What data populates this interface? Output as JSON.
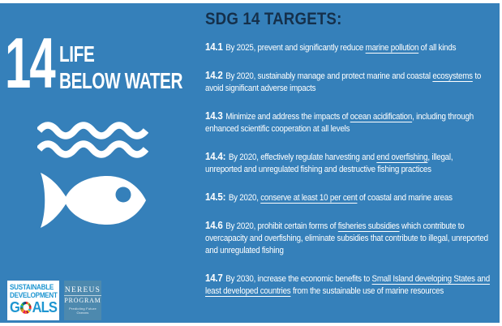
{
  "colors": {
    "background": "#3580ba",
    "header_text": "#15304b",
    "body_text": "#ffffff",
    "sdg_logo_blue": "#1e96d1",
    "nereus_box": "#4d89ae",
    "sdg_wheel": [
      "#E5243B",
      "#DDA63A",
      "#4C9F38",
      "#C5192D",
      "#FF3A21",
      "#26BDE2",
      "#FCC30B",
      "#A21942",
      "#FD6925",
      "#DD1367",
      "#FD9D24",
      "#BF8B2E",
      "#3F7E44",
      "#0A97D9",
      "#56C02B",
      "#00689D",
      "#19486A"
    ]
  },
  "goal": {
    "number": "14",
    "title_line1": "LIFE",
    "title_line2": "BELOW WATER"
  },
  "icons": {
    "waves": "waves-icon",
    "fish": "fish-icon",
    "sdg_wheel": "sdg-wheel-icon"
  },
  "header": "SDG 14 TARGETS:",
  "targets": [
    {
      "num": "14.1",
      "segments": [
        [
          "By 2025, prevent and significantly reduce ",
          false
        ],
        [
          "marine pollution",
          true
        ],
        [
          " of all kinds",
          false
        ]
      ]
    },
    {
      "num": "14.2",
      "segments": [
        [
          "By 2020, sustainably manage and protect marine and coastal ",
          false
        ],
        [
          "ecosystems",
          true
        ],
        [
          " to avoid significant adverse impacts",
          false
        ]
      ]
    },
    {
      "num": "14.3",
      "segments": [
        [
          "Minimize and address the impacts of ",
          false
        ],
        [
          "ocean acidification",
          true
        ],
        [
          ", including through enhanced scientific cooperation at all levels",
          false
        ]
      ]
    },
    {
      "num": "14.4:",
      "segments": [
        [
          "By 2020, effectively regulate harvesting and ",
          false
        ],
        [
          "end overfishing",
          true
        ],
        [
          ", illegal, unreported and unregulated fishing and destructive fishing practices",
          false
        ]
      ]
    },
    {
      "num": "14.5:",
      "segments": [
        [
          "By 2020, ",
          false
        ],
        [
          "conserve at least 10 per cent",
          true
        ],
        [
          " of coastal and marine areas",
          false
        ]
      ]
    },
    {
      "num": "14.6",
      "segments": [
        [
          "By 2020, prohibit certain forms of ",
          false
        ],
        [
          "fisheries subsidies",
          true
        ],
        [
          " which contribute to overcapacity and overfishing, eliminate subsidies that contribute to illegal, unreported and unregulated fishing",
          false
        ]
      ]
    },
    {
      "num": "14.7",
      "segments": [
        [
          "By 2030, increase the economic benefits to ",
          false
        ],
        [
          "Small Island developing States and least developed countries",
          true
        ],
        [
          " from the sustainable use of marine resources",
          false
        ]
      ]
    }
  ],
  "logos": {
    "sdg": {
      "line1": "SUSTAINABLE",
      "line2": "DEVELOPMENT",
      "goals_prefix": "G",
      "goals_suffix": "ALS"
    },
    "nereus": {
      "line1": "NEREUS",
      "line2": "PROGRAM",
      "tagline": "Predicting Future Oceans"
    }
  }
}
